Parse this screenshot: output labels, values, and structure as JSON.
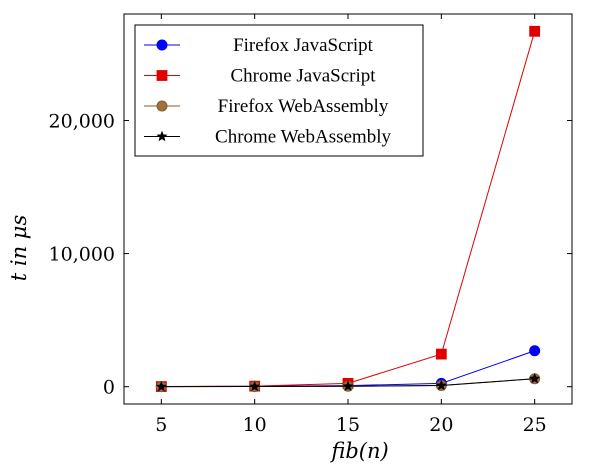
{
  "chart_data": {
    "type": "line",
    "xlabel": "fib(n)",
    "ylabel": "t in μs",
    "x": [
      5,
      10,
      15,
      20,
      25
    ],
    "xticks": [
      5,
      10,
      15,
      20,
      25
    ],
    "xtick_labels": [
      "5",
      "10",
      "15",
      "20",
      "25"
    ],
    "xlim": [
      3,
      27
    ],
    "yticks": [
      0,
      10000,
      20000
    ],
    "ytick_labels": [
      "0",
      "10,000",
      "20,000"
    ],
    "ylim": [
      -1300,
      28000
    ],
    "grid": false,
    "legend_position": "top-left",
    "series": [
      {
        "name": "Firefox JavaScript",
        "color": "#0000ff",
        "marker": "circle",
        "values": [
          5,
          30,
          80,
          250,
          2700
        ]
      },
      {
        "name": "Chrome JavaScript",
        "color": "#e00000",
        "marker": "square",
        "values": [
          10,
          40,
          250,
          2450,
          26700
        ]
      },
      {
        "name": "Firefox WebAssembly",
        "color": "#8b5a2b",
        "marker": "circle",
        "values": [
          3,
          10,
          30,
          90,
          600
        ]
      },
      {
        "name": "Chrome WebAssembly",
        "color": "#000000",
        "marker": "star",
        "values": [
          3,
          10,
          30,
          90,
          600
        ]
      }
    ]
  }
}
